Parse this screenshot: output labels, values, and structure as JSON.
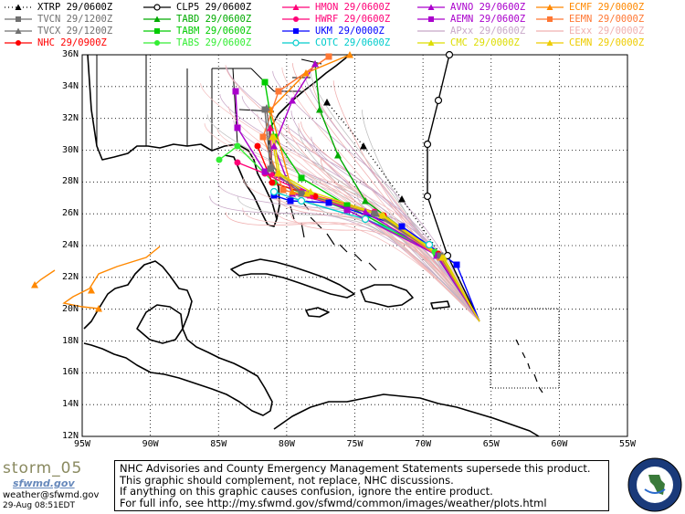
{
  "legend": [
    {
      "label": "XTRP",
      "time": "29/0600Z",
      "color": "#000000",
      "marker": "triangle",
      "dash": "dot"
    },
    {
      "label": "TVCN",
      "time": "29/1200Z",
      "color": "#707070",
      "marker": "square",
      "dash": "solid"
    },
    {
      "label": "TVCX",
      "time": "29/1200Z",
      "color": "#707070",
      "marker": "triangle",
      "dash": "solid"
    },
    {
      "label": "NHC",
      "time": "29/0900Z",
      "color": "#ff0000",
      "marker": "circle",
      "dash": "solid"
    },
    {
      "label": "CLP5",
      "time": "29/0600Z",
      "color": "#000000",
      "marker": "ring",
      "dash": "solid"
    },
    {
      "label": "TABD",
      "time": "29/0600Z",
      "color": "#00aa00",
      "marker": "triangle",
      "dash": "solid"
    },
    {
      "label": "TABM",
      "time": "29/0600Z",
      "color": "#00cc00",
      "marker": "square",
      "dash": "solid"
    },
    {
      "label": "TABS",
      "time": "29/0600Z",
      "color": "#33ee33",
      "marker": "circle",
      "dash": "solid"
    },
    {
      "label": "HMON",
      "time": "29/0600Z",
      "color": "#ff0077",
      "marker": "triangle",
      "dash": "solid"
    },
    {
      "label": "HWRF",
      "time": "29/0600Z",
      "color": "#ff0077",
      "marker": "circle",
      "dash": "solid"
    },
    {
      "label": "UKM",
      "time": "29/0000Z",
      "color": "#0000ff",
      "marker": "square",
      "dash": "solid"
    },
    {
      "label": "COTC",
      "time": "29/0600Z",
      "color": "#00cccc",
      "marker": "ring",
      "dash": "solid"
    },
    {
      "label": "AVNO",
      "time": "29/0600Z",
      "color": "#aa00cc",
      "marker": "triangle",
      "dash": "solid"
    },
    {
      "label": "AEMN",
      "time": "29/0600Z",
      "color": "#aa00cc",
      "marker": "square",
      "dash": "solid"
    },
    {
      "label": "APxx",
      "time": "29/0600Z",
      "color": "#c8a8c8",
      "marker": "none",
      "dash": "solid"
    },
    {
      "label": "CMC",
      "time": "29/0000Z",
      "color": "#dddd00",
      "marker": "triangle",
      "dash": "solid"
    },
    {
      "label": "ECMF",
      "time": "29/0000Z",
      "color": "#ff8800",
      "marker": "triangle",
      "dash": "solid"
    },
    {
      "label": "EEMN",
      "time": "29/0000Z",
      "color": "#ff7733",
      "marker": "square",
      "dash": "solid"
    },
    {
      "label": "EExx",
      "time": "29/0000Z",
      "color": "#f0b0b0",
      "marker": "none",
      "dash": "solid"
    },
    {
      "label": "CEMN",
      "time": "29/0000Z",
      "color": "#eecc00",
      "marker": "triangle",
      "dash": "solid"
    }
  ],
  "map": {
    "lat_labels": [
      "36N",
      "34N",
      "32N",
      "30N",
      "28N",
      "26N",
      "24N",
      "22N",
      "20N",
      "18N",
      "16N",
      "14N",
      "12N"
    ],
    "lon_labels": [
      "95W",
      "90W",
      "85W",
      "80W",
      "75W",
      "70W",
      "65W",
      "60W",
      "55W"
    ]
  },
  "footer": {
    "lines": [
      "NHC Advisories and County Emergency Management Statements supersede this product.",
      "This graphic should complement, not replace, NHC discussions.",
      "If anything on this graphic causes confusion, ignore the entire product.",
      "For full info, see  http://my.sfwmd.gov/sfwmd/common/images/weather/plots.html"
    ]
  },
  "branding": {
    "storm_name": "storm_05",
    "logo_text": "sfwmd.gov",
    "email": "weather@sfwmd.gov",
    "timestamp": "29-Aug 08:51EDT"
  }
}
